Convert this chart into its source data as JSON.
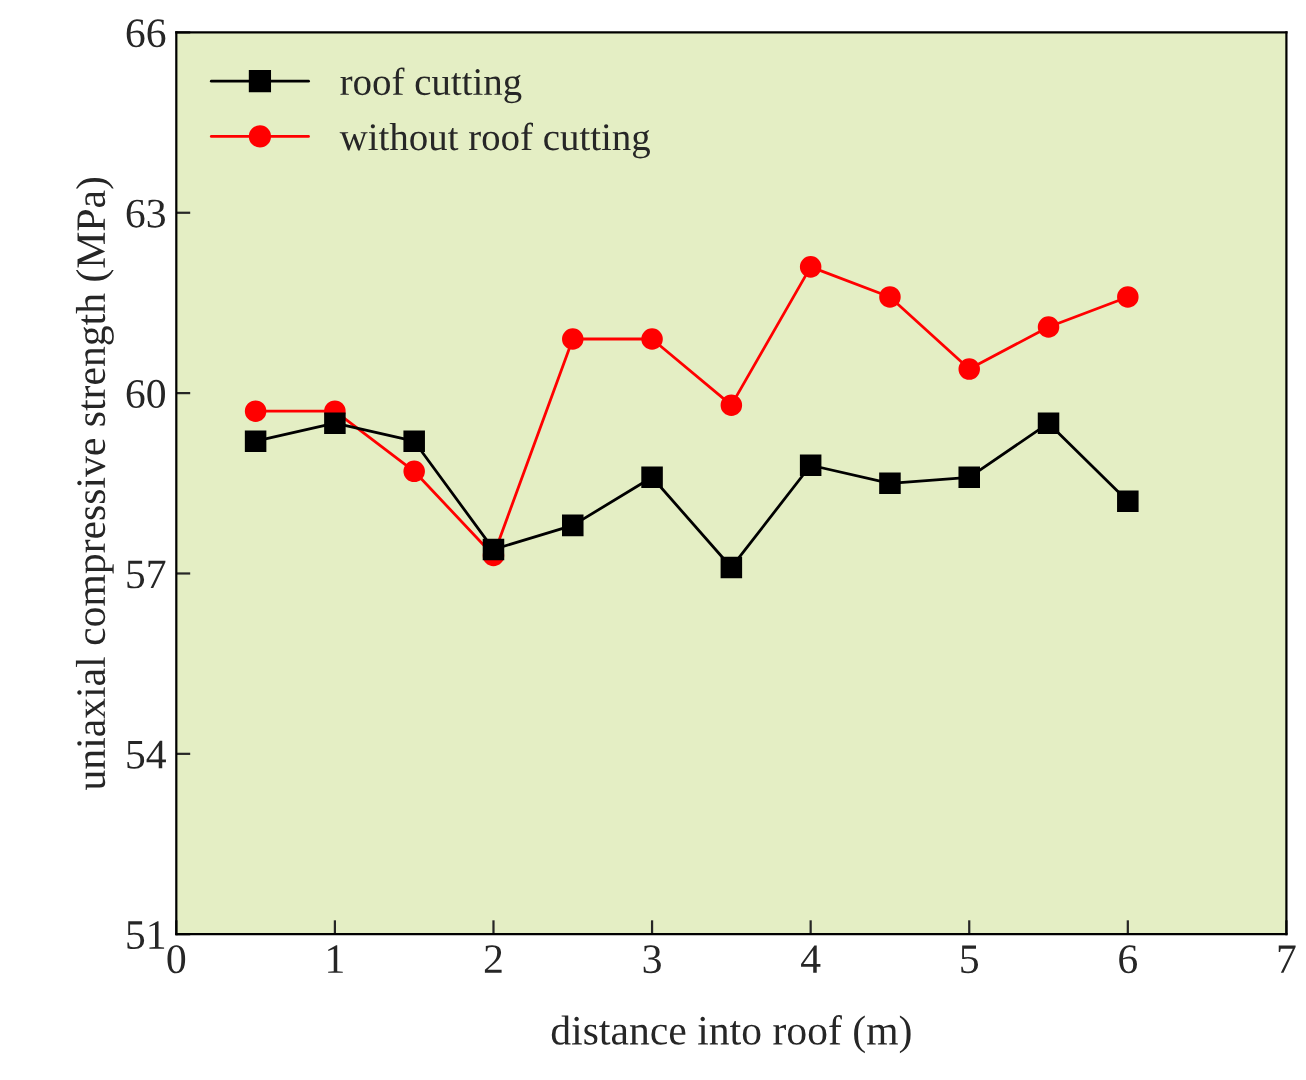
{
  "chart_data": {
    "type": "line",
    "xlabel": "distance into roof (m)",
    "ylabel": "uniaxial compressive strength (MPa)",
    "x": [
      0.5,
      1,
      1.5,
      2,
      2.5,
      3,
      3.5,
      4,
      4.5,
      5,
      5.5,
      6
    ],
    "series": [
      {
        "name": "roof cutting",
        "color": "#000000",
        "marker": "square",
        "values": [
          59.2,
          59.5,
          59.2,
          57.4,
          57.8,
          58.6,
          57.1,
          58.8,
          58.5,
          58.6,
          59.5,
          58.2
        ]
      },
      {
        "name": "without roof cutting",
        "color": "#ff0000",
        "marker": "circle",
        "values": [
          59.7,
          59.7,
          58.7,
          57.3,
          60.9,
          60.9,
          59.8,
          62.1,
          61.6,
          60.4,
          61.1,
          61.6
        ]
      }
    ],
    "xlim": [
      0,
      7
    ],
    "xticks": [
      0,
      1,
      2,
      3,
      4,
      5,
      6,
      7
    ],
    "ylim": [
      51,
      66
    ],
    "yticks": [
      51,
      54,
      57,
      60,
      63,
      66
    ],
    "grid": false,
    "legend": "top left",
    "line_style": "solid"
  }
}
